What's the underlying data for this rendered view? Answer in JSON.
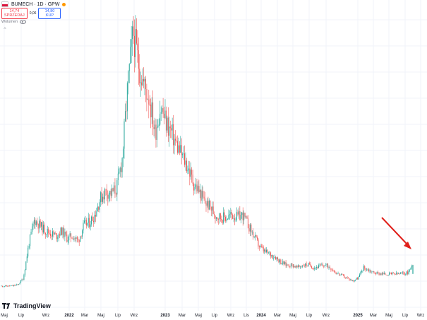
{
  "header": {
    "title": "BUMECH · 1D · GPW",
    "status_color": "#ff9800",
    "sell": {
      "price": "14,74",
      "label": "SPRZEDAJ"
    },
    "spread": "0,06",
    "buy": {
      "price": "14,80",
      "label": "KUP"
    },
    "volume_label": "Wolumen"
  },
  "logo": {
    "text": "TradingView"
  },
  "colors": {
    "up": "#26a69a",
    "down": "#ef5350",
    "grid": "#f0f3fa",
    "arrow": "#e0201b"
  },
  "chart_data": {
    "type": "line",
    "title": "BUMECH · 1D · GPW",
    "xlabel": "",
    "ylabel": "",
    "grid": true,
    "x_ticks": [
      {
        "label": "Maj",
        "bold": false
      },
      {
        "label": "Lip",
        "bold": false
      },
      {
        "label": "Wrz",
        "bold": false
      },
      {
        "label": "2022",
        "bold": true
      },
      {
        "label": "Mar",
        "bold": false
      },
      {
        "label": "Maj",
        "bold": false
      },
      {
        "label": "Lip",
        "bold": false
      },
      {
        "label": "Wrz",
        "bold": false
      },
      {
        "label": "2023",
        "bold": true
      },
      {
        "label": "Mar",
        "bold": false
      },
      {
        "label": "Maj",
        "bold": false
      },
      {
        "label": "Lip",
        "bold": false
      },
      {
        "label": "Wrz",
        "bold": false
      },
      {
        "label": "Lis",
        "bold": false
      },
      {
        "label": "2024",
        "bold": true
      },
      {
        "label": "Mar",
        "bold": false
      },
      {
        "label": "Maj",
        "bold": false
      },
      {
        "label": "Lip",
        "bold": false
      },
      {
        "label": "Wrz",
        "bold": false
      },
      {
        "label": "2025",
        "bold": true
      },
      {
        "label": "Mar",
        "bold": false
      },
      {
        "label": "Maj",
        "bold": false
      },
      {
        "label": "Lip",
        "bold": false
      },
      {
        "label": "Wrz",
        "bold": false
      }
    ],
    "series": [
      {
        "values": [
          4.0,
          4.0,
          4.1,
          4.5,
          7.0,
          20.0,
          29.0,
          27.0,
          25.0,
          24.0,
          23.0,
          25.0,
          22.0,
          23.0,
          21.0,
          27.0,
          28.0,
          31.0,
          37.0,
          40.0,
          39.0,
          41.0,
          52.0,
          79.0,
          100.0,
          88.0,
          80.0,
          75.0,
          62.0,
          72.0,
          66.0,
          62.0,
          57.0,
          53.0,
          49.0,
          43.0,
          40.0,
          36.0,
          34.0,
          31.0,
          30.0,
          30.0,
          31.0,
          30.0,
          31.0,
          27.0,
          23.0,
          19.0,
          17.0,
          16.0,
          15.0,
          13.0,
          12.0,
          12.0,
          11.0,
          12.0,
          12.0,
          11.0,
          11.5,
          12.0,
          11.0,
          9.0,
          8.0,
          7.0,
          6.0,
          7.0,
          11.0,
          10.0,
          9.0,
          8.8,
          8.5,
          8.6,
          8.6,
          8.7,
          9.0,
          12.0
        ]
      }
    ]
  }
}
